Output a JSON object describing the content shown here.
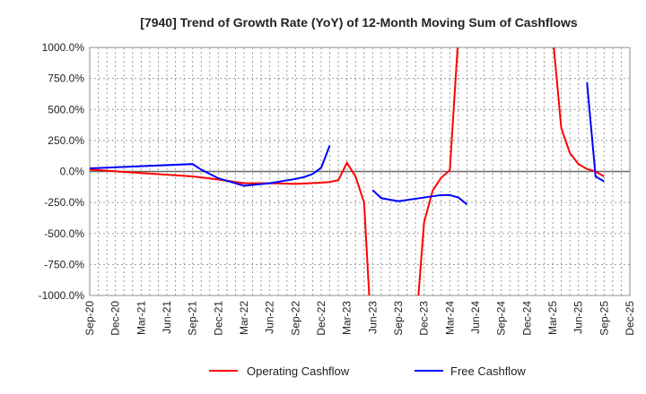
{
  "chart_data": {
    "type": "line",
    "title": "[7940]  Trend of Growth Rate (YoY) of 12-Month Moving Sum of Cashflows",
    "xlabel": "",
    "ylabel": "",
    "ylim": [
      -1000,
      1000
    ],
    "yticks": [
      "1000.0%",
      "750.0%",
      "500.0%",
      "250.0%",
      "0.0%",
      "-250.0%",
      "-500.0%",
      "-750.0%",
      "-1000.0%"
    ],
    "ytick_values": [
      1000,
      750,
      500,
      250,
      0,
      -250,
      -500,
      -750,
      -1000
    ],
    "xticks": [
      "Sep-20",
      "Dec-20",
      "Mar-21",
      "Jun-21",
      "Sep-21",
      "Dec-21",
      "Mar-22",
      "Jun-22",
      "Sep-22",
      "Dec-22",
      "Mar-23",
      "Jun-23",
      "Sep-23",
      "Dec-23",
      "Mar-24",
      "Jun-24",
      "Sep-24",
      "Dec-24",
      "Mar-25",
      "Jun-25",
      "Sep-25",
      "Dec-25"
    ],
    "x_start": "2020-09",
    "x_months": 63,
    "grid": true,
    "legend": "bottom",
    "series": [
      {
        "name": "Operating Cashflow",
        "color": "#ff0000",
        "points": [
          [
            0,
            15
          ],
          [
            12,
            -40
          ],
          [
            15,
            -65
          ],
          [
            18,
            -95
          ],
          [
            21,
            -95
          ],
          [
            24,
            -100
          ],
          [
            27,
            -90
          ],
          [
            28,
            -85
          ],
          [
            29,
            -70
          ],
          [
            30,
            70
          ],
          [
            31,
            -40
          ],
          [
            32,
            -250
          ],
          [
            33,
            -1500
          ],
          null,
          [
            38,
            -1300
          ],
          [
            39,
            -410
          ],
          [
            40,
            -155
          ],
          [
            41,
            -50
          ],
          [
            42,
            10
          ],
          [
            43,
            1100
          ],
          null,
          [
            54,
            1100
          ],
          [
            55,
            350
          ],
          [
            56,
            150
          ],
          [
            57,
            60
          ],
          [
            58,
            20
          ],
          [
            59,
            0
          ],
          [
            60,
            -40
          ]
        ]
      },
      {
        "name": "Free Cashflow",
        "color": "#0000ff",
        "points": [
          [
            0,
            25
          ],
          [
            12,
            60
          ],
          [
            13,
            15
          ],
          [
            14,
            -20
          ],
          [
            15,
            -55
          ],
          [
            18,
            -115
          ],
          [
            21,
            -95
          ],
          [
            24,
            -60
          ],
          [
            25,
            -45
          ],
          [
            26,
            -20
          ],
          [
            27,
            30
          ],
          [
            28,
            210
          ],
          null,
          [
            33,
            -150
          ],
          [
            34,
            -215
          ],
          [
            36,
            -240
          ],
          [
            41,
            -190
          ],
          [
            42,
            -190
          ],
          [
            43,
            -210
          ],
          [
            44,
            -265
          ],
          null,
          [
            58,
            720
          ],
          [
            59,
            -40
          ],
          [
            60,
            -80
          ]
        ]
      }
    ]
  }
}
